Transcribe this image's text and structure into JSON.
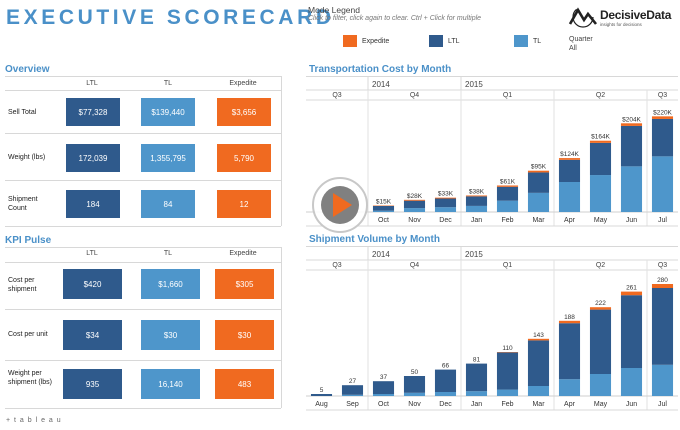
{
  "header": {
    "title": "EXECUTIVE SCORECARD",
    "legend_title": "Mode Legend",
    "legend_hint": "Click to filter, click again to clear. Ctrl + Click for multiple",
    "legend_items": [
      {
        "label": "Expedite",
        "color": "#f06a20"
      },
      {
        "label": "LTL",
        "color": "#2f5a8c"
      },
      {
        "label": "TL",
        "color": "#4e96cb"
      }
    ],
    "quarter_label": "Quarter",
    "quarter_value": "All",
    "logo_text": "DecisiveData",
    "logo_sub": "insights for decisions"
  },
  "overview": {
    "title": "Overview",
    "columns": [
      "LTL",
      "TL",
      "Expedite"
    ],
    "rows": [
      {
        "label": "Sell Total",
        "values": [
          "$77,328",
          "$139,440",
          "$3,656"
        ]
      },
      {
        "label": "Weight (lbs)",
        "values": [
          "172,039",
          "1,355,795",
          "5,790"
        ]
      },
      {
        "label": "Shipment Count",
        "values": [
          "184",
          "84",
          "12"
        ]
      }
    ]
  },
  "kpi": {
    "title": "KPI Pulse",
    "columns": [
      "LTL",
      "TL",
      "Expedite"
    ],
    "rows": [
      {
        "label": "Cost per shipment",
        "values": [
          "$420",
          "$1,660",
          "$305"
        ]
      },
      {
        "label": "Cost per unit",
        "values": [
          "$34",
          "$30",
          "$30"
        ]
      },
      {
        "label": "Weight per shipment (lbs)",
        "values": [
          "935",
          "16,140",
          "483"
        ]
      }
    ]
  },
  "colors": {
    "ltl": "#2f5a8c",
    "tl": "#4e96cb",
    "expedite": "#f06a20"
  },
  "footer": {
    "brand": "+ t a b l e a u"
  },
  "chart_data": [
    {
      "type": "bar",
      "title": "Transportation Cost by Month",
      "years": [
        {
          "label": "2014",
          "span": [
            "Oct",
            "Dec"
          ]
        },
        {
          "label": "2015",
          "span": [
            "Jan",
            "Jul"
          ]
        }
      ],
      "quarters": [
        "Q3",
        "Q4",
        "Q1",
        "Q2",
        "Q3"
      ],
      "categories": [
        "Oct",
        "Nov",
        "Dec",
        "Jan",
        "Feb",
        "Mar",
        "Apr",
        "May",
        "Jun",
        "Jul"
      ],
      "totals": [
        "$15K",
        "$28K",
        "$33K",
        "$38K",
        "$61K",
        "$95K",
        "$124K",
        "$164K",
        "$204K",
        "$220K"
      ],
      "series": [
        {
          "name": "TL",
          "values": [
            3,
            9,
            11,
            14,
            26,
            44,
            69,
            85,
            105,
            128
          ]
        },
        {
          "name": "LTL",
          "values": [
            11,
            17,
            20,
            22,
            32,
            47,
            51,
            74,
            93,
            86
          ]
        },
        {
          "name": "Expedite",
          "values": [
            1,
            2,
            2,
            2,
            3,
            4,
            4,
            5,
            6,
            6
          ]
        }
      ],
      "ylim": [
        0,
        230
      ]
    },
    {
      "type": "bar",
      "title": "Shipment Volume by Month",
      "years": [
        {
          "label": "2014",
          "span": [
            "Oct",
            "Dec"
          ]
        },
        {
          "label": "2015",
          "span": [
            "Jan",
            "Jul"
          ]
        }
      ],
      "quarters": [
        "Q3",
        "Q4",
        "Q1",
        "Q2",
        "Q3"
      ],
      "categories": [
        "Aug",
        "Sep",
        "Oct",
        "Nov",
        "Dec",
        "Jan",
        "Feb",
        "Mar",
        "Apr",
        "May",
        "Jun",
        "Jul"
      ],
      "totals": [
        "5",
        "27",
        "37",
        "50",
        "66",
        "81",
        "110",
        "143",
        "188",
        "222",
        "261",
        "280"
      ],
      "series": [
        {
          "name": "TL",
          "values": [
            0,
            3,
            5,
            8,
            10,
            12,
            16,
            25,
            42,
            55,
            70,
            78
          ]
        },
        {
          "name": "LTL",
          "values": [
            5,
            24,
            32,
            42,
            56,
            69,
            93,
            114,
            140,
            161,
            182,
            192
          ]
        },
        {
          "name": "Expedite",
          "values": [
            0,
            0,
            0,
            0,
            0,
            0,
            1,
            4,
            6,
            6,
            9,
            10
          ]
        }
      ],
      "ylim": [
        0,
        290
      ]
    }
  ]
}
